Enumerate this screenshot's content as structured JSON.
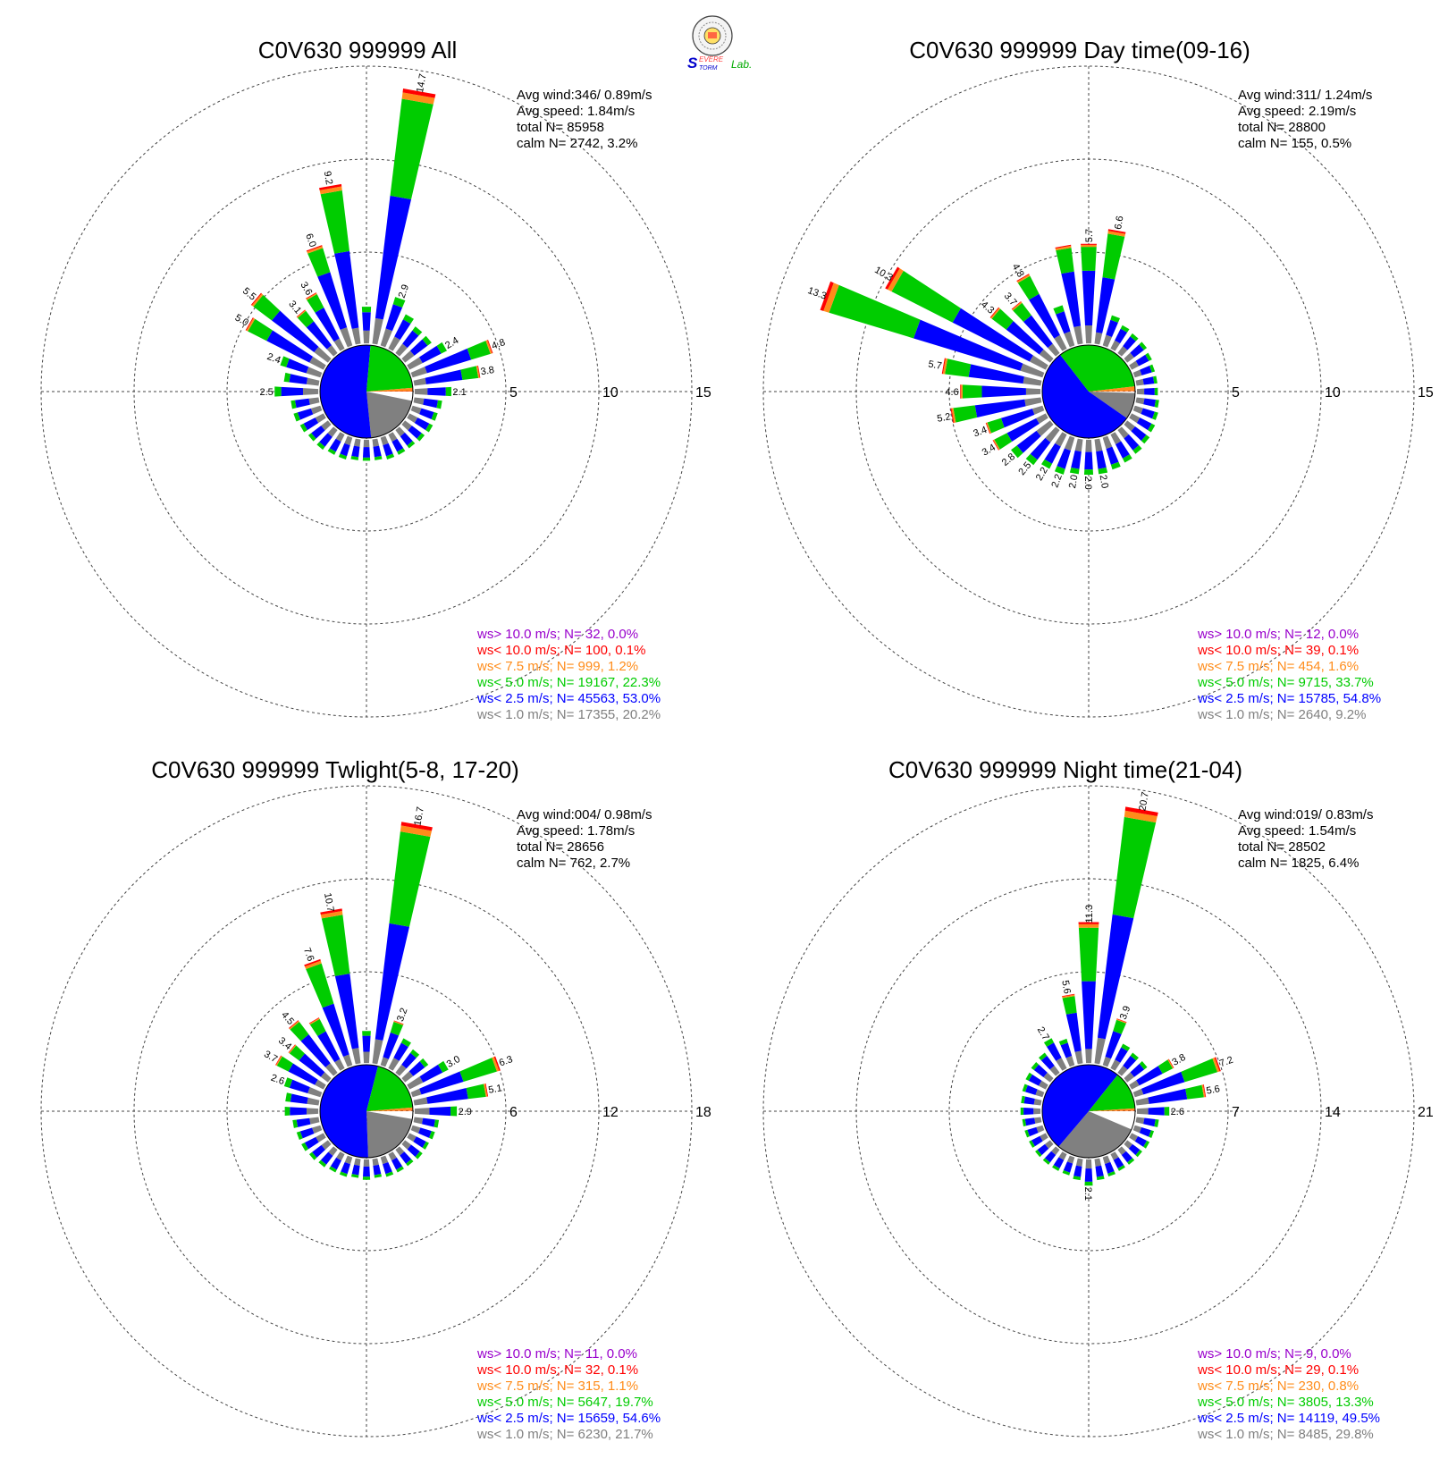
{
  "logo": {
    "text_s": "S",
    "text_severe": "EVERE",
    "text_storm": "TORM",
    "text_lab": "Lab."
  },
  "colors": {
    "calm": "#ffffff",
    "c1": "#808080",
    "c2": "#0000ff",
    "c3": "#00cc00",
    "c4": "#ff8c1a",
    "c5": "#ff0000",
    "c6": "#9900cc"
  },
  "chart_data": [
    {
      "type": "wind_rose",
      "title": "C0V630 999999 All",
      "stats": {
        "avg_wind": "Avg wind:346/ 0.89m/s",
        "avg_speed": "Avg speed: 1.84m/s",
        "total": "total N=      85958",
        "calm": "calm N=   2742,   3.2%"
      },
      "rings": [
        5,
        10,
        15
      ],
      "ring_labels": [
        "5",
        "10",
        "15"
      ],
      "legend": [
        {
          "label": "ws> 10.0 m/s; N=    32,  0.0%",
          "color": "#9900cc"
        },
        {
          "label": "ws< 10.0 m/s; N=   100,  0.1%",
          "color": "#ff0000"
        },
        {
          "label": "ws<  7.5 m/s; N=   999,  1.2%",
          "color": "#ff8c1a"
        },
        {
          "label": "ws<  5.0 m/s; N= 19167, 22.3%",
          "color": "#00cc00"
        },
        {
          "label": "ws<  2.5 m/s; N= 45563, 53.0%",
          "color": "#0000ff"
        },
        {
          "label": "ws<  1.0 m/s; N= 17355, 20.2%",
          "color": "#808080"
        }
      ],
      "pie_fractions": [
        0.032,
        0.202,
        0.53,
        0.223,
        0.012,
        0.001
      ],
      "directions_deg": [
        0,
        10,
        20,
        30,
        40,
        50,
        60,
        70,
        80,
        90,
        100,
        110,
        120,
        130,
        140,
        150,
        160,
        170,
        180,
        190,
        200,
        210,
        220,
        230,
        240,
        250,
        260,
        270,
        280,
        290,
        300,
        310,
        320,
        330,
        340,
        350
      ],
      "dir_totals": [
        2.1,
        14.7,
        2.9,
        2.2,
        1.9,
        1.9,
        2.4,
        4.8,
        3.8,
        2.1,
        1.6,
        1.5,
        1.5,
        1.4,
        1.3,
        1.3,
        1.3,
        1.2,
        1.2,
        1.2,
        1.3,
        1.3,
        1.4,
        1.4,
        1.5,
        1.6,
        1.6,
        2.5,
        2.0,
        2.4,
        5.0,
        5.5,
        3.1,
        3.6,
        6.0,
        9.2
      ],
      "bar_labels": {
        "1": "14.7",
        "2": "2.9",
        "6": "2.4",
        "7": "4.8",
        "8": "3.8",
        "9": "2.1",
        "27": "2.5",
        "29": "2.4",
        "30": "5.0",
        "31": "5.5",
        "32": "3.1",
        "33": "3.6",
        "34": "6.0",
        "35": "9.2"
      },
      "label_override_dirs": {
        "30": "5.5",
        "31": "5.0"
      }
    },
    {
      "type": "wind_rose",
      "title": "C0V630 999999 Day time(09-16)",
      "stats": {
        "avg_wind": "Avg wind:311/ 1.24m/s",
        "avg_speed": "Avg speed: 2.19m/s",
        "total": "total N=      28800",
        "calm": "calm N=    155,   0.5%"
      },
      "rings": [
        5,
        10,
        15
      ],
      "ring_labels": [
        "5",
        "10",
        "15"
      ],
      "legend": [
        {
          "label": "ws> 10.0 m/s; N=    12,  0.0%",
          "color": "#9900cc"
        },
        {
          "label": "ws< 10.0 m/s; N=    39,  0.1%",
          "color": "#ff0000"
        },
        {
          "label": "ws<  7.5 m/s; N=   454,  1.6%",
          "color": "#ff8c1a"
        },
        {
          "label": "ws<  5.0 m/s; N=  9715, 33.7%",
          "color": "#00cc00"
        },
        {
          "label": "ws<  2.5 m/s; N= 15785, 54.8%",
          "color": "#0000ff"
        },
        {
          "label": "ws<  1.0 m/s; N=  2640,  9.2%",
          "color": "#808080"
        }
      ],
      "pie_fractions": [
        0.005,
        0.092,
        0.548,
        0.337,
        0.016,
        0.001
      ],
      "directions_deg": [
        0,
        10,
        20,
        30,
        40,
        50,
        60,
        70,
        80,
        90,
        100,
        110,
        120,
        130,
        140,
        150,
        160,
        170,
        180,
        190,
        200,
        210,
        220,
        230,
        240,
        250,
        260,
        270,
        280,
        290,
        300,
        310,
        320,
        330,
        340,
        350
      ],
      "dir_totals": [
        5.7,
        6.6,
        1.8,
        1.5,
        1.4,
        1.4,
        1.3,
        1.2,
        1.2,
        1.2,
        1.3,
        1.4,
        1.5,
        1.6,
        1.7,
        1.8,
        1.9,
        2.0,
        2.0,
        2.0,
        2.2,
        2.2,
        2.5,
        2.8,
        3.4,
        3.4,
        5.2,
        4.6,
        5.7,
        13.3,
        10.3,
        4.3,
        3.7,
        4.8,
        2.4,
        5.7
      ],
      "bar_labels": {
        "0": "5.7",
        "1": "6.6",
        "17": "2.0",
        "18": "2.0",
        "19": "2.0",
        "20": "2.2",
        "21": "2.2",
        "22": "2.5",
        "23": "2.8",
        "24": "3.4",
        "25": "3.4",
        "26": "5.2",
        "27": "4.6",
        "28": "5.7",
        "29": "13.3",
        "30": "10.3",
        "31": "4.3",
        "32": "3.7",
        "33": "4.8"
      }
    },
    {
      "type": "wind_rose",
      "title": "C0V630 999999 Twlight(5-8, 17-20)",
      "stats": {
        "avg_wind": "Avg wind:004/ 0.98m/s",
        "avg_speed": "Avg speed: 1.78m/s",
        "total": "total N=      28656",
        "calm": "calm N=    762,   2.7%"
      },
      "rings": [
        6,
        12,
        18
      ],
      "ring_labels": [
        "6",
        "12",
        "18"
      ],
      "legend": [
        {
          "label": "ws> 10.0 m/s; N=    11,  0.0%",
          "color": "#9900cc"
        },
        {
          "label": "ws< 10.0 m/s; N=    32,  0.1%",
          "color": "#ff0000"
        },
        {
          "label": "ws<  7.5 m/s; N=   315,  1.1%",
          "color": "#ff8c1a"
        },
        {
          "label": "ws<  5.0 m/s; N=  5647, 19.7%",
          "color": "#00cc00"
        },
        {
          "label": "ws<  2.5 m/s; N= 15659, 54.6%",
          "color": "#0000ff"
        },
        {
          "label": "ws<  1.0 m/s; N=  6230, 21.7%",
          "color": "#808080"
        }
      ],
      "pie_fractions": [
        0.027,
        0.217,
        0.546,
        0.197,
        0.011,
        0.001
      ],
      "directions_deg": [
        0,
        10,
        20,
        30,
        40,
        50,
        60,
        70,
        80,
        90,
        100,
        110,
        120,
        130,
        140,
        150,
        160,
        170,
        180,
        190,
        200,
        210,
        220,
        230,
        240,
        250,
        260,
        270,
        280,
        290,
        300,
        310,
        320,
        330,
        340,
        350
      ],
      "dir_totals": [
        2.2,
        16.7,
        3.2,
        2.3,
        2.0,
        2.0,
        3.0,
        6.3,
        5.1,
        2.9,
        1.7,
        1.6,
        1.5,
        1.5,
        1.4,
        1.4,
        1.4,
        1.3,
        1.4,
        1.3,
        1.4,
        1.4,
        1.5,
        1.6,
        1.7,
        1.7,
        1.8,
        2.3,
        2.3,
        2.6,
        3.7,
        3.4,
        4.5,
        3.9,
        7.6,
        10.7
      ],
      "bar_labels": {
        "1": "16.7",
        "2": "3.2",
        "6": "3.0",
        "7": "6.3",
        "8": "5.1",
        "9": "2.9",
        "29": "2.6",
        "30": "3.7",
        "31": "3.4",
        "32": "4.5",
        "34": "7.6",
        "35": "10.7"
      }
    },
    {
      "type": "wind_rose",
      "title": "C0V630 999999 Night time(21-04)",
      "stats": {
        "avg_wind": "Avg wind:019/ 0.83m/s",
        "avg_speed": "Avg speed: 1.54m/s",
        "total": "total N=      28502",
        "calm": "calm N=   1825,   6.4%"
      },
      "rings": [
        7,
        14,
        21
      ],
      "ring_labels": [
        "7",
        "14",
        "21"
      ],
      "legend": [
        {
          "label": "ws> 10.0 m/s; N=     9,  0.0%",
          "color": "#9900cc"
        },
        {
          "label": "ws< 10.0 m/s; N=    29,  0.1%",
          "color": "#ff0000"
        },
        {
          "label": "ws<  7.5 m/s; N=   230,  0.8%",
          "color": "#ff8c1a"
        },
        {
          "label": "ws<  5.0 m/s; N=  3805, 13.3%",
          "color": "#00cc00"
        },
        {
          "label": "ws<  2.5 m/s; N= 14119, 49.5%",
          "color": "#0000ff"
        },
        {
          "label": "ws<  1.0 m/s; N=  8485, 29.8%",
          "color": "#808080"
        }
      ],
      "pie_fractions": [
        0.064,
        0.298,
        0.495,
        0.133,
        0.008,
        0.001
      ],
      "directions_deg": [
        0,
        10,
        20,
        30,
        40,
        50,
        60,
        70,
        80,
        90,
        100,
        110,
        120,
        130,
        140,
        150,
        160,
        170,
        180,
        190,
        200,
        210,
        220,
        230,
        240,
        250,
        260,
        270,
        280,
        290,
        300,
        310,
        320,
        330,
        340,
        350
      ],
      "dir_totals": [
        11.3,
        20.7,
        3.9,
        2.2,
        2.0,
        2.0,
        3.8,
        7.2,
        5.6,
        2.6,
        1.8,
        1.6,
        1.6,
        1.5,
        1.5,
        1.5,
        1.6,
        1.7,
        2.1,
        1.7,
        1.5,
        1.5,
        1.5,
        1.5,
        1.5,
        1.5,
        1.5,
        1.6,
        1.6,
        1.7,
        1.8,
        1.9,
        2.0,
        2.7,
        2.2,
        5.6
      ],
      "bar_labels": {
        "0": "11.3",
        "1": "20.7",
        "2": "3.9",
        "6": "3.8",
        "7": "7.2",
        "8": "5.6",
        "9": "2.6",
        "18": "2.1",
        "33": "2.7",
        "35": "5.6"
      }
    }
  ]
}
